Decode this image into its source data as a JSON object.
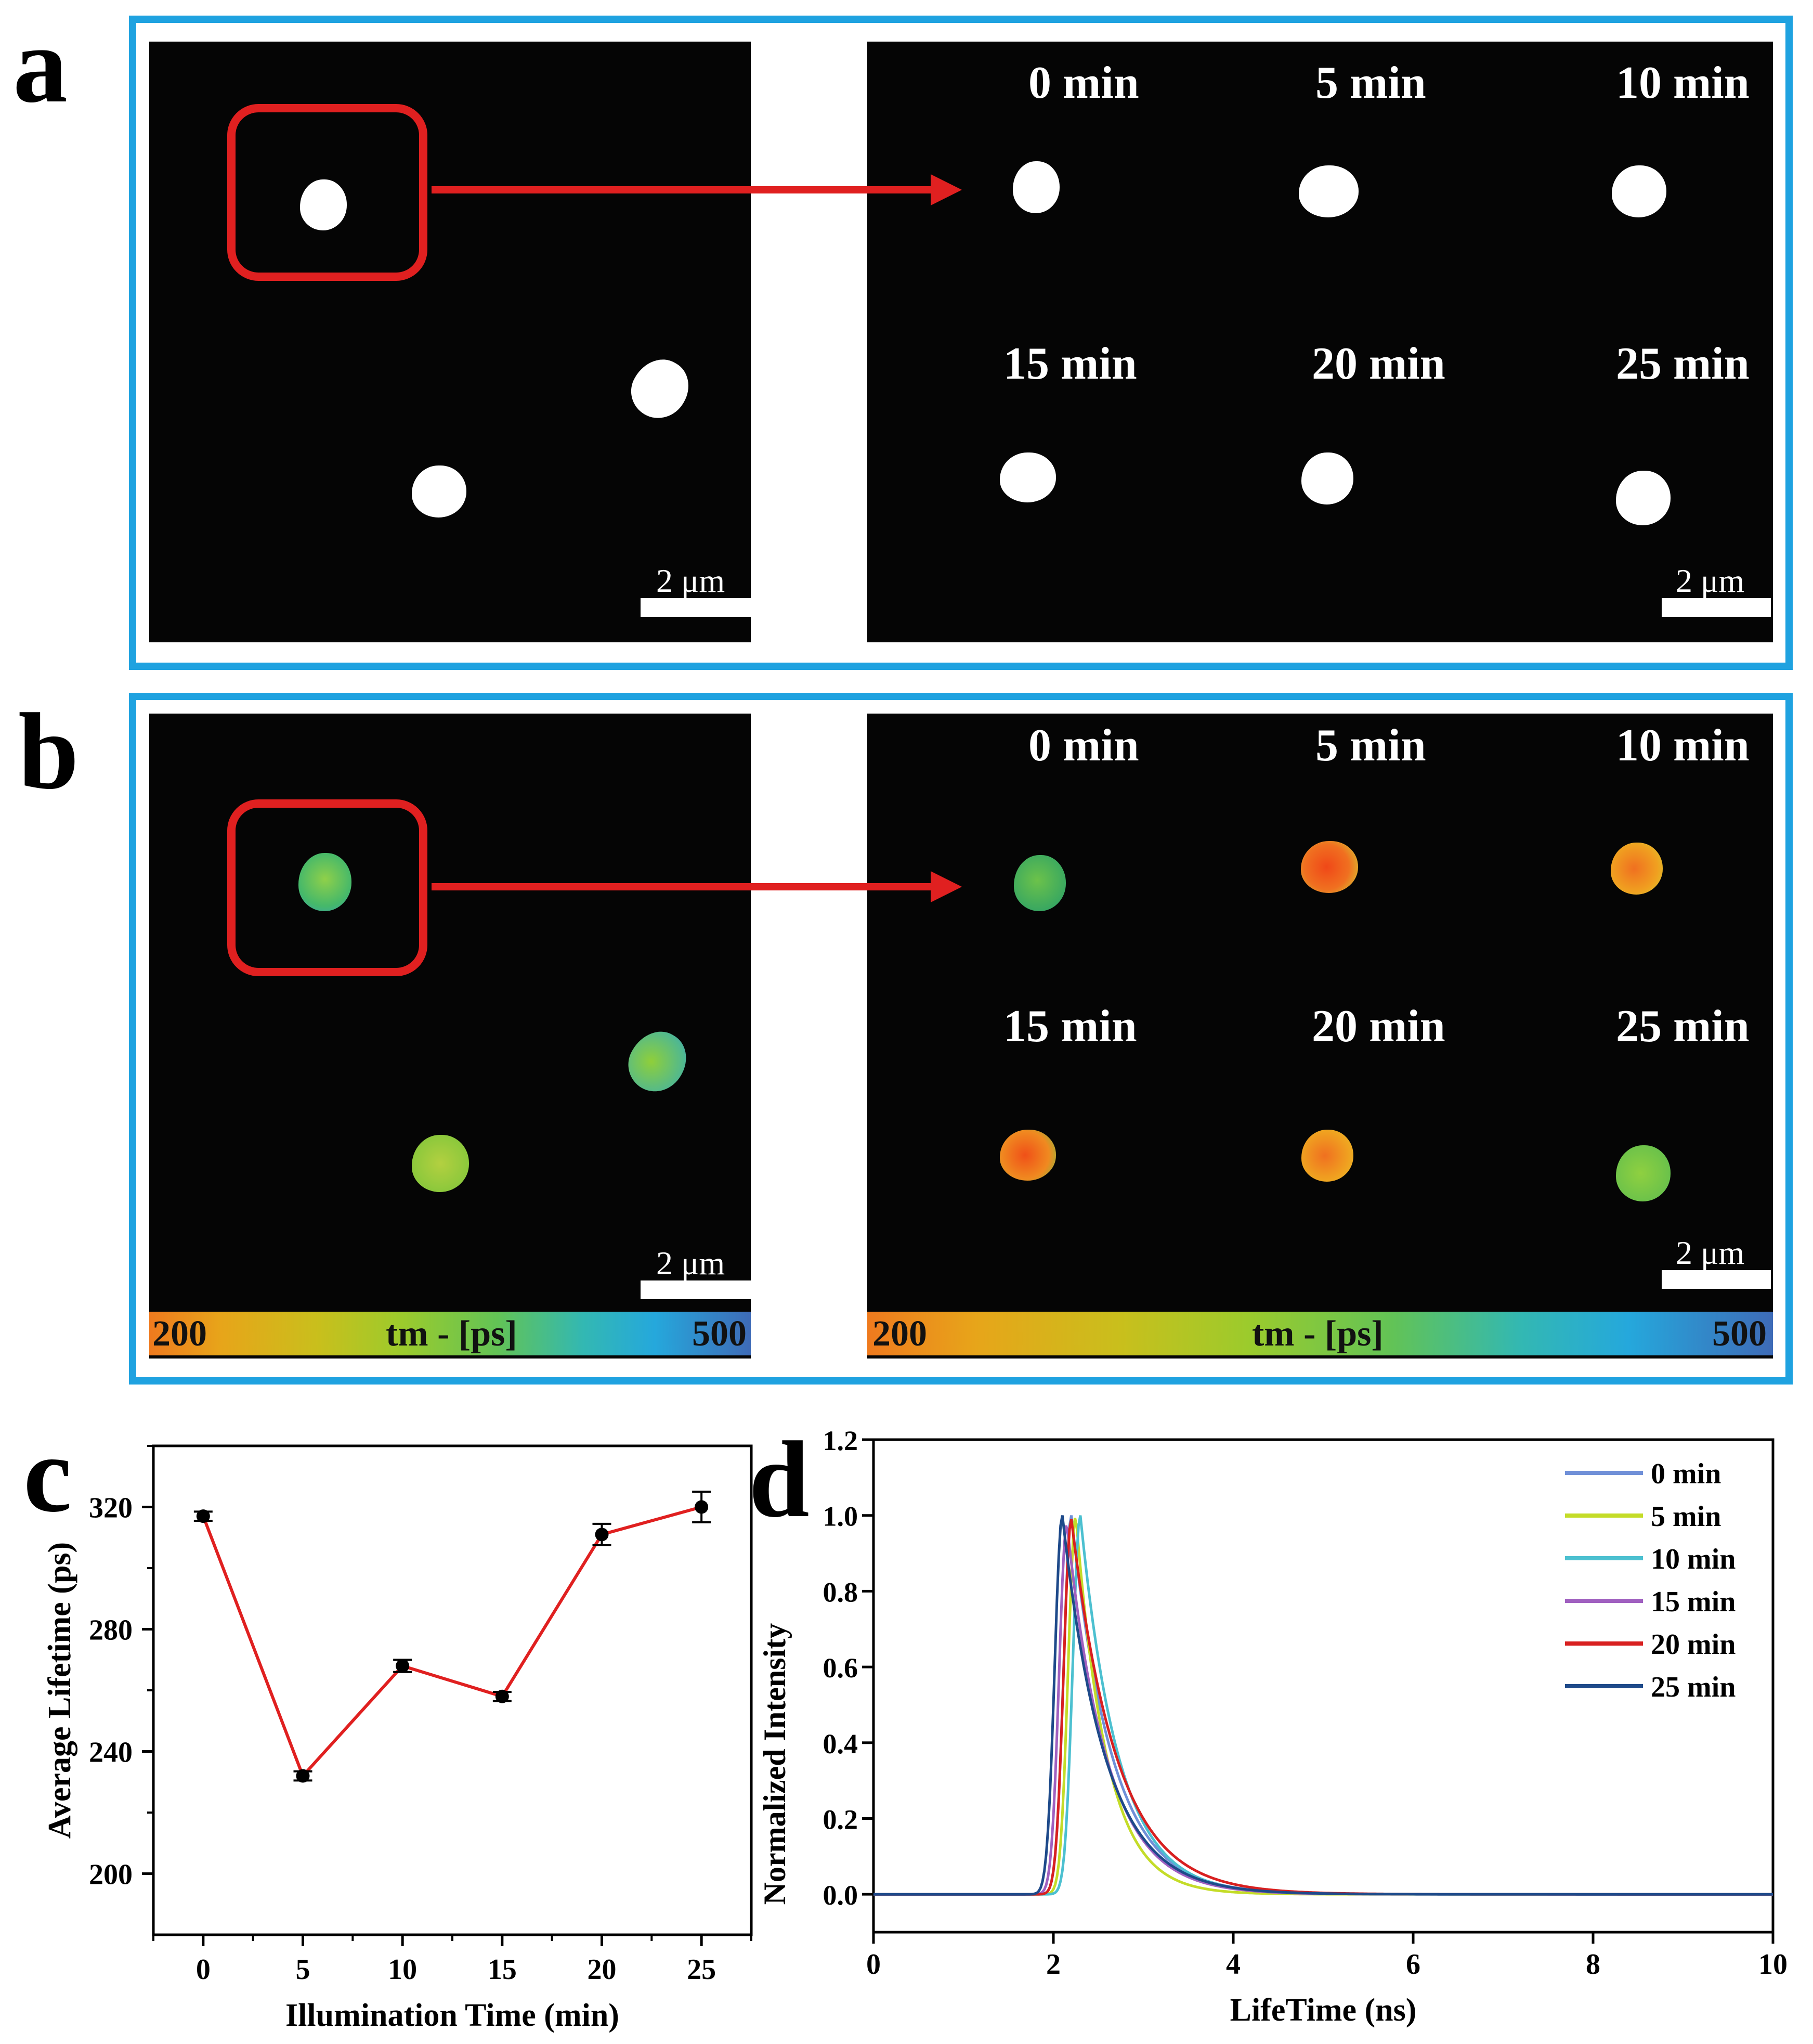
{
  "panels": {
    "a": {
      "letter": "a"
    },
    "b": {
      "letter": "b"
    },
    "c": {
      "letter": "c"
    },
    "d": {
      "letter": "d"
    }
  },
  "time_labels": [
    "0 min",
    "5 min",
    "10 min",
    "15 min",
    "20 min",
    "25 min"
  ],
  "scale_bar": "2 μm",
  "colorbar": {
    "min": "200",
    "label": "tm - [ps]",
    "max": "500"
  },
  "colors": {
    "frame": "#1fa2e0",
    "highlight": "#e02020",
    "line_c": "#e02020"
  },
  "chart_data": [
    {
      "type": "line",
      "xlabel": "Illumination Time (min)",
      "ylabel": "Average Lifetime (ps)",
      "x": [
        0,
        5,
        10,
        15,
        20,
        25
      ],
      "y": [
        317,
        232,
        268,
        258,
        311,
        320
      ],
      "error": [
        1.5,
        1.5,
        2,
        1.5,
        3.5,
        5
      ],
      "xticks": [
        "0",
        "5",
        "10",
        "15",
        "20",
        "25"
      ],
      "yticks": [
        "200",
        "240",
        "280",
        "320"
      ],
      "xlim": [
        -2.5,
        27.5
      ],
      "ylim": [
        180,
        340
      ],
      "color": "#e02020"
    },
    {
      "type": "line",
      "xlabel": "LifeTime (ns)",
      "ylabel": "Normalized Intensity",
      "xticks": [
        "0",
        "2",
        "4",
        "6",
        "8",
        "10"
      ],
      "yticks": [
        "0.0",
        "0.2",
        "0.4",
        "0.6",
        "0.8",
        "1.0",
        "1.2"
      ],
      "xlim": [
        0,
        10
      ],
      "ylim": [
        -0.1,
        1.2
      ],
      "legend_position": "top-right",
      "series": [
        {
          "name": "0   min",
          "color": "#7090d8",
          "peak_x": 2.2,
          "peak_y": 1.0,
          "decay": 0.45
        },
        {
          "name": "5   min",
          "color": "#c4dc28",
          "peak_x": 2.25,
          "peak_y": 1.0,
          "decay": 0.34
        },
        {
          "name": "10 min",
          "color": "#4cc0d0",
          "peak_x": 2.3,
          "peak_y": 1.0,
          "decay": 0.42
        },
        {
          "name": "15 min",
          "color": "#a060c0",
          "peak_x": 2.15,
          "peak_y": 0.98,
          "decay": 0.44
        },
        {
          "name": "20 min",
          "color": "#d82020",
          "peak_x": 2.2,
          "peak_y": 0.99,
          "decay": 0.5
        },
        {
          "name": "25 min",
          "color": "#1e4a8a",
          "peak_x": 2.1,
          "peak_y": 1.0,
          "decay": 0.47
        }
      ]
    }
  ]
}
